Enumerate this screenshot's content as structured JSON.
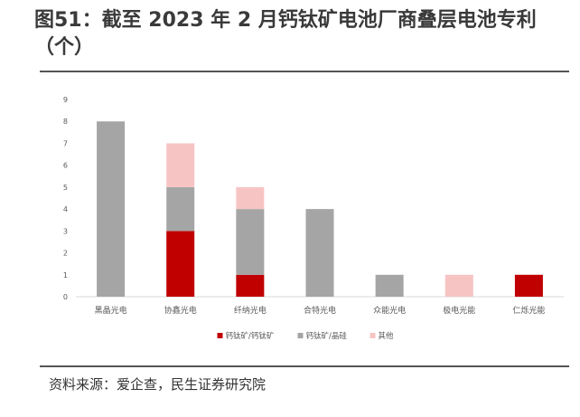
{
  "title": "图51：截至 2023 年 2 月钙钛矿电池厂商叠层电池专利（个）",
  "source": "资料来源：爱企查，民生证券研究院",
  "chart_data": {
    "type": "bar",
    "stacked": true,
    "categories": [
      "黑晶光电",
      "协鑫光电",
      "纤纳光电",
      "合特光电",
      "众能光电",
      "极电光能",
      "仁烁光能"
    ],
    "series": [
      {
        "name": "钙钛矿/钙钛矿",
        "color": "#c00000",
        "values": [
          0,
          3,
          1,
          0,
          0,
          0,
          1
        ]
      },
      {
        "name": "钙钛矿/晶硅",
        "color": "#a5a5a5",
        "values": [
          8,
          2,
          3,
          4,
          1,
          0,
          0
        ]
      },
      {
        "name": "其他",
        "color": "#f7c4c4",
        "values": [
          0,
          2,
          1,
          0,
          0,
          1,
          0
        ]
      }
    ],
    "y_ticks": [
      "0",
      "1",
      "2",
      "3",
      "4",
      "5",
      "6",
      "7",
      "8",
      "9"
    ],
    "ylim": [
      0,
      9
    ],
    "legend_position": "bottom"
  }
}
